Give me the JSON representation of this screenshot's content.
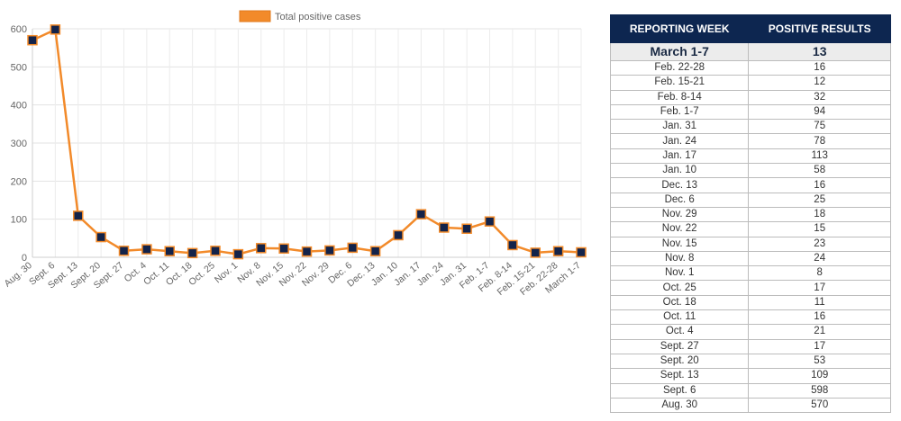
{
  "colors": {
    "line": "#f28a2a",
    "marker": "#13234a",
    "header_bg": "#0d2650",
    "highlight_bg": "#ececec"
  },
  "chart_data": {
    "type": "line",
    "categories": [
      "Aug. 30",
      "Sept. 6",
      "Sept. 13",
      "Sept. 20",
      "Sept. 27",
      "Oct. 4",
      "Oct. 11",
      "Oct. 18",
      "Oct. 25",
      "Nov. 1",
      "Nov. 8",
      "Nov. 15",
      "Nov. 22",
      "Nov. 29",
      "Dec. 6",
      "Dec. 13",
      "Jan. 10",
      "Jan. 17",
      "Jan. 24",
      "Jan. 31",
      "Feb. 1-7",
      "Feb. 8-14",
      "Feb. 15-21",
      "Feb. 22-28",
      "March 1-7"
    ],
    "series": [
      {
        "name": "Total positive cases",
        "values": [
          570,
          598,
          109,
          53,
          17,
          21,
          16,
          11,
          17,
          8,
          24,
          23,
          15,
          18,
          25,
          16,
          58,
          113,
          78,
          75,
          94,
          32,
          12,
          16,
          13
        ]
      }
    ],
    "ylim": [
      0,
      600
    ],
    "yticks": [
      0,
      100,
      200,
      300,
      400,
      500,
      600
    ],
    "grid": true,
    "legend": "top-center"
  },
  "table": {
    "headers": [
      "REPORTING WEEK",
      "POSITIVE RESULTS"
    ],
    "rows": [
      [
        "March 1-7",
        "13"
      ],
      [
        "Feb. 22-28",
        "16"
      ],
      [
        "Feb. 15-21",
        "12"
      ],
      [
        "Feb. 8-14",
        "32"
      ],
      [
        "Feb. 1-7",
        "94"
      ],
      [
        "Jan. 31",
        "75"
      ],
      [
        "Jan. 24",
        "78"
      ],
      [
        "Jan. 17",
        "113"
      ],
      [
        "Jan. 10",
        "58"
      ],
      [
        "Dec. 13",
        "16"
      ],
      [
        "Dec. 6",
        "25"
      ],
      [
        "Nov. 29",
        "18"
      ],
      [
        "Nov. 22",
        "15"
      ],
      [
        "Nov. 15",
        "23"
      ],
      [
        "Nov. 8",
        "24"
      ],
      [
        "Nov. 1",
        "8"
      ],
      [
        "Oct. 25",
        "17"
      ],
      [
        "Oct. 18",
        "11"
      ],
      [
        "Oct. 11",
        "16"
      ],
      [
        "Oct. 4",
        "21"
      ],
      [
        "Sept. 27",
        "17"
      ],
      [
        "Sept. 20",
        "53"
      ],
      [
        "Sept. 13",
        "109"
      ],
      [
        "Sept. 6",
        "598"
      ],
      [
        "Aug. 30",
        "570"
      ]
    ]
  }
}
